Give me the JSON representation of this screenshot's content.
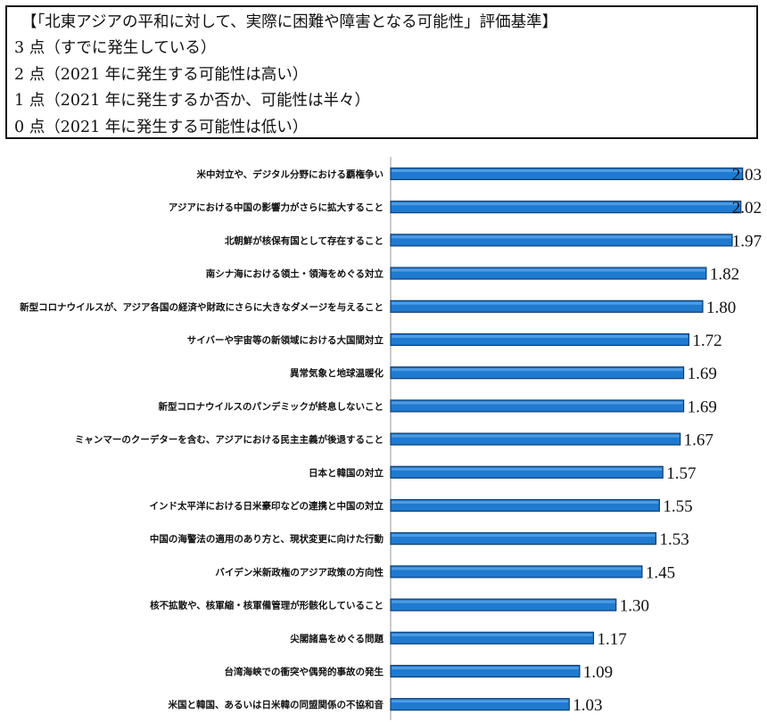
{
  "legend": {
    "title": "【「北東アジアの平和に対して、実際に困難や障害となる可能性」評価基準】",
    "items": [
      "3 点（すでに発生している）",
      "2 点（2021 年に発生する可能性は高い）",
      "1 点（2021 年に発生するか否か、可能性は半々）",
      "0 点（2021 年に発生する可能性は低い）"
    ]
  },
  "chart_data": {
    "type": "bar",
    "orientation": "horizontal",
    "categories": [
      "米中対立や、デジタル分野における覇権争い",
      "アジアにおける中国の影響力がさらに拡大すること",
      "北朝鮮が核保有国として存在すること",
      "南シナ海における領土・領海をめぐる対立",
      "新型コロナウイルスが、アジア各国の経済や財政にさらに大きなダメージを与えること",
      "サイバーや宇宙等の新領域における大国間対立",
      "異常気象と地球温暖化",
      "新型コロナウイルスのパンデミックが終息しないこと",
      "ミャンマーのクーデターを含む、アジアにおける民主主義が後退すること",
      "日本と韓国の対立",
      "インド太平洋における日米豪印などの連携と中国の対立",
      "中国の海警法の適用のあり方と、現状変更に向けた行動",
      "バイデン米新政権のアジア政策の方向性",
      "核不拡散や、核軍縮・核軍備管理が形骸化していること",
      "尖閣諸島をめぐる問題",
      "台湾海峡での衝突や偶発的事故の発生",
      "米国と韓国、あるいは日米韓の同盟関係の不協和音"
    ],
    "values": [
      2.03,
      2.02,
      1.97,
      1.82,
      1.8,
      1.72,
      1.69,
      1.69,
      1.67,
      1.57,
      1.55,
      1.53,
      1.45,
      1.3,
      1.17,
      1.09,
      1.03
    ],
    "value_labels": [
      "2.03",
      "2.02",
      "1.97",
      "1.82",
      "1.80",
      "1.72",
      "1.69",
      "1.69",
      "1.67",
      "1.57",
      "1.55",
      "1.53",
      "1.45",
      "1.30",
      "1.17",
      "1.09",
      "1.03"
    ],
    "xlim": [
      0,
      2.15
    ],
    "bar_color": "#1f7ad0",
    "bar_edge_color": "#0d3f73"
  }
}
